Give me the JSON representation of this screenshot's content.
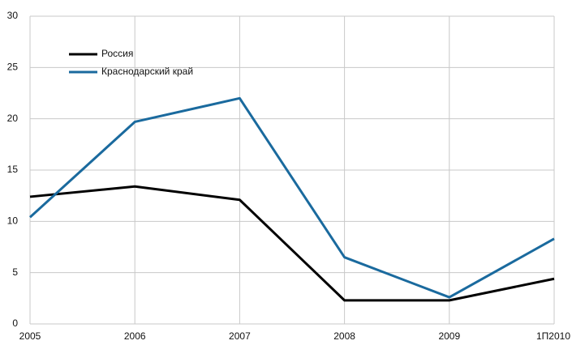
{
  "chart_data": {
    "type": "line",
    "categories": [
      "2005",
      "2006",
      "2007",
      "2008",
      "2009",
      "1П2010"
    ],
    "series": [
      {
        "name": "Россия",
        "color": "#000000",
        "values": [
          12.4,
          13.4,
          12.1,
          2.3,
          2.3,
          4.4
        ]
      },
      {
        "name": "Краснодарский край",
        "color": "#1a6a9e",
        "values": [
          10.4,
          19.7,
          22.0,
          6.5,
          2.6,
          8.3
        ]
      }
    ],
    "ylim": [
      0,
      30
    ],
    "yticks": [
      0,
      5,
      10,
      15,
      20,
      25,
      30
    ],
    "grid": true,
    "legend": "upper left"
  }
}
